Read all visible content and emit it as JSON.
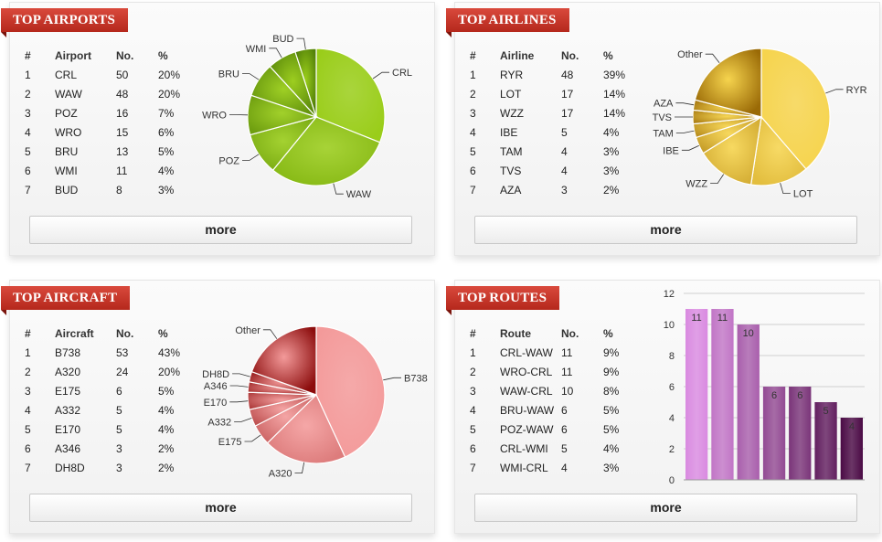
{
  "panels": {
    "airports": {
      "title": "TOP AIRPORTS",
      "headers": [
        "#",
        "Airport",
        "No.",
        "%"
      ],
      "rows": [
        [
          "1",
          "CRL",
          "50",
          "20%"
        ],
        [
          "2",
          "WAW",
          "48",
          "20%"
        ],
        [
          "3",
          "POZ",
          "16",
          "7%"
        ],
        [
          "4",
          "WRO",
          "15",
          "6%"
        ],
        [
          "5",
          "BRU",
          "13",
          "5%"
        ],
        [
          "6",
          "WMI",
          "11",
          "4%"
        ],
        [
          "7",
          "BUD",
          "8",
          "3%"
        ]
      ],
      "more_label": "more",
      "pie_colors": [
        "#9acd1a",
        "#4f7d08"
      ],
      "chart_data": {
        "type": "pie",
        "slices": [
          {
            "label": "CRL",
            "value": 50
          },
          {
            "label": "WAW",
            "value": 48
          },
          {
            "label": "POZ",
            "value": 16
          },
          {
            "label": "WRO",
            "value": 15
          },
          {
            "label": "BRU",
            "value": 13
          },
          {
            "label": "WMI",
            "value": 11
          },
          {
            "label": "BUD",
            "value": 8
          }
        ]
      }
    },
    "airlines": {
      "title": "TOP AIRLINES",
      "headers": [
        "#",
        "Airline",
        "No.",
        "%"
      ],
      "rows": [
        [
          "1",
          "RYR",
          "48",
          "39%"
        ],
        [
          "2",
          "LOT",
          "17",
          "14%"
        ],
        [
          "3",
          "WZZ",
          "17",
          "14%"
        ],
        [
          "4",
          "IBE",
          "5",
          "4%"
        ],
        [
          "5",
          "TAM",
          "4",
          "3%"
        ],
        [
          "6",
          "TVS",
          "4",
          "3%"
        ],
        [
          "7",
          "AZA",
          "3",
          "2%"
        ]
      ],
      "more_label": "more",
      "pie_colors": [
        "#f6d44e",
        "#9a6a06"
      ],
      "chart_data": {
        "type": "pie",
        "slices": [
          {
            "label": "RYR",
            "value": 48
          },
          {
            "label": "LOT",
            "value": 17
          },
          {
            "label": "WZZ",
            "value": 17
          },
          {
            "label": "IBE",
            "value": 5
          },
          {
            "label": "TAM",
            "value": 4
          },
          {
            "label": "TVS",
            "value": 4
          },
          {
            "label": "AZA",
            "value": 3
          },
          {
            "label": "Other",
            "value": 26
          }
        ]
      }
    },
    "aircraft": {
      "title": "TOP AIRCRAFT",
      "headers": [
        "#",
        "Aircraft",
        "No.",
        "%"
      ],
      "rows": [
        [
          "1",
          "B738",
          "53",
          "43%"
        ],
        [
          "2",
          "A320",
          "24",
          "20%"
        ],
        [
          "3",
          "E175",
          "6",
          "5%"
        ],
        [
          "4",
          "A332",
          "5",
          "4%"
        ],
        [
          "5",
          "E170",
          "5",
          "4%"
        ],
        [
          "6",
          "A346",
          "3",
          "2%"
        ],
        [
          "7",
          "DH8D",
          "3",
          "2%"
        ]
      ],
      "more_label": "more",
      "pie_colors": [
        "#f39a9a",
        "#8c0d0d"
      ],
      "chart_data": {
        "type": "pie",
        "slices": [
          {
            "label": "B738",
            "value": 53
          },
          {
            "label": "A320",
            "value": 24
          },
          {
            "label": "E175",
            "value": 6
          },
          {
            "label": "A332",
            "value": 5
          },
          {
            "label": "E170",
            "value": 5
          },
          {
            "label": "A346",
            "value": 3
          },
          {
            "label": "DH8D",
            "value": 3
          },
          {
            "label": "Other",
            "value": 24
          }
        ]
      }
    },
    "routes": {
      "title": "TOP ROUTES",
      "headers": [
        "#",
        "Route",
        "No.",
        "%"
      ],
      "rows": [
        [
          "1",
          "CRL-WAW",
          "11",
          "9%"
        ],
        [
          "2",
          "WRO-CRL",
          "11",
          "9%"
        ],
        [
          "3",
          "WAW-CRL",
          "10",
          "8%"
        ],
        [
          "4",
          "BRU-WAW",
          "6",
          "5%"
        ],
        [
          "5",
          "POZ-WAW",
          "6",
          "5%"
        ],
        [
          "6",
          "CRL-WMI",
          "5",
          "4%"
        ],
        [
          "7",
          "WMI-CRL",
          "4",
          "3%"
        ]
      ],
      "more_label": "more",
      "bar_colors": [
        "#d98ae0",
        "#4a0a45"
      ],
      "chart_data": {
        "type": "bar",
        "values": [
          11,
          11,
          10,
          6,
          6,
          5,
          4
        ],
        "ylim": [
          0,
          12
        ],
        "yticks": [
          0,
          2,
          4,
          6,
          8,
          10,
          12
        ],
        "grid": true
      }
    }
  }
}
